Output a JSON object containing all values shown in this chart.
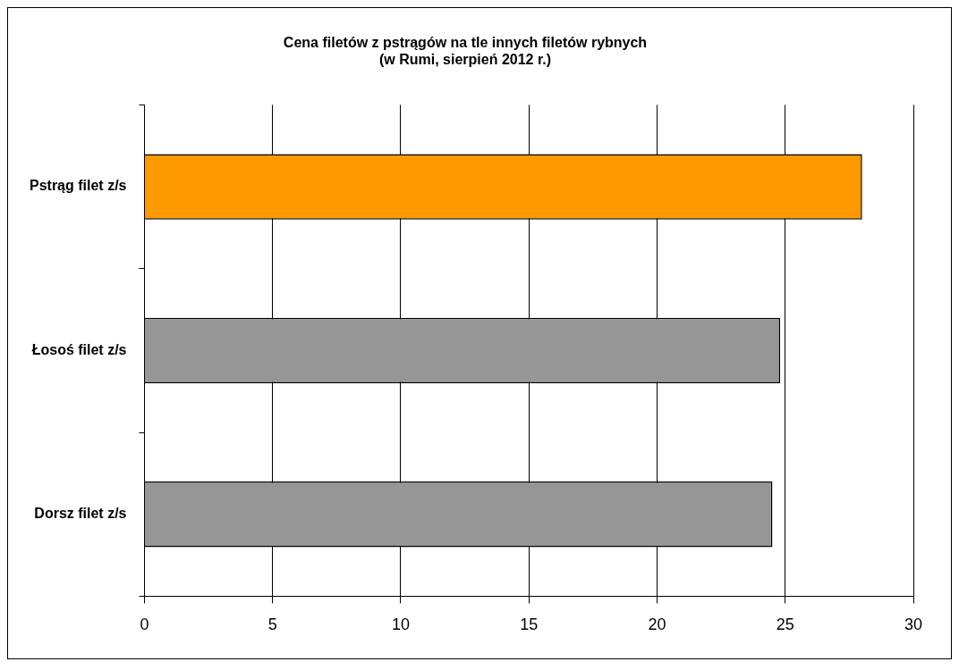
{
  "chart_data": {
    "type": "bar",
    "orientation": "horizontal",
    "title": "Cena filetów z pstrągów na tle innych filetów rybnych",
    "subtitle": "(w Rumi, sierpień 2012 r.)",
    "categories": [
      "Pstrąg filet z/s",
      "Łosoś filet z/s",
      "Dorsz filet z/s"
    ],
    "values": [
      28.0,
      24.8,
      24.5
    ],
    "colors": [
      "#ff9900",
      "#969696",
      "#969696"
    ],
    "xlim": [
      0,
      30
    ],
    "xticks": [
      0,
      5,
      10,
      15,
      20,
      25,
      30
    ],
    "grid": "x",
    "legend": false
  }
}
